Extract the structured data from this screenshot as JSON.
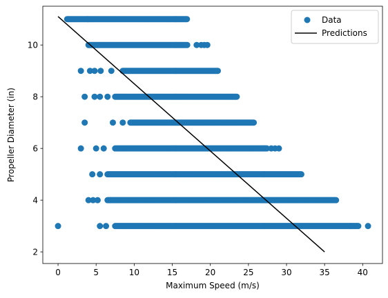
{
  "chart_data": {
    "type": "scatter",
    "title": "",
    "xlabel": "Maximum Speed (m/s)",
    "ylabel": "Propeller Diameter (in)",
    "xlim": [
      -2.0,
      42.6
    ],
    "ylim": [
      1.55,
      11.5
    ],
    "xticks": [
      0,
      5,
      10,
      15,
      20,
      25,
      30,
      35,
      40
    ],
    "yticks": [
      2,
      4,
      6,
      8,
      10
    ],
    "xtick_labels": [
      "0",
      "5",
      "10",
      "15",
      "20",
      "25",
      "30",
      "35",
      "40"
    ],
    "ytick_labels": [
      "2",
      "4",
      "6",
      "8",
      "10"
    ],
    "grid": false,
    "legend_placement": "top-right",
    "colors": {
      "data": "#1f77b4",
      "predictions": "#000000"
    },
    "series": [
      {
        "name": "Data",
        "kind": "scatter",
        "groups": [
          {
            "y": 11,
            "x_dense": [
              1.2,
              17.0
            ],
            "x_sparse": []
          },
          {
            "y": 10,
            "x_dense": [
              4.0,
              17.0
            ],
            "x_sparse": [
              18.2,
              18.8,
              19.2,
              19.6
            ]
          },
          {
            "y": 9,
            "x_dense": [
              8.5,
              21.0
            ],
            "x_sparse": [
              3.0,
              4.2,
              4.8,
              5.6,
              7.0
            ]
          },
          {
            "y": 8,
            "x_dense": [
              7.5,
              23.5
            ],
            "x_sparse": [
              3.5,
              4.8,
              5.5,
              6.5
            ]
          },
          {
            "y": 7,
            "x_dense": [
              9.5,
              25.8
            ],
            "x_sparse": [
              3.5,
              7.2,
              8.5
            ]
          },
          {
            "y": 6,
            "x_dense": [
              7.5,
              27.5
            ],
            "x_sparse": [
              3.0,
              5.0,
              6.0,
              28.0,
              28.5,
              29.0
            ]
          },
          {
            "y": 5,
            "x_dense": [
              6.5,
              32.0
            ],
            "x_sparse": [
              4.5,
              5.5
            ]
          },
          {
            "y": 4,
            "x_dense": [
              6.5,
              36.5
            ],
            "x_sparse": [
              4.0,
              4.6,
              5.2
            ]
          },
          {
            "y": 3,
            "x_dense": [
              7.5,
              39.5
            ],
            "x_sparse": [
              0.0,
              5.5,
              6.3,
              40.7
            ]
          }
        ]
      },
      {
        "name": "Predictions",
        "kind": "line",
        "x": [
          0,
          35
        ],
        "y": [
          11.1,
          2.0
        ]
      }
    ]
  }
}
